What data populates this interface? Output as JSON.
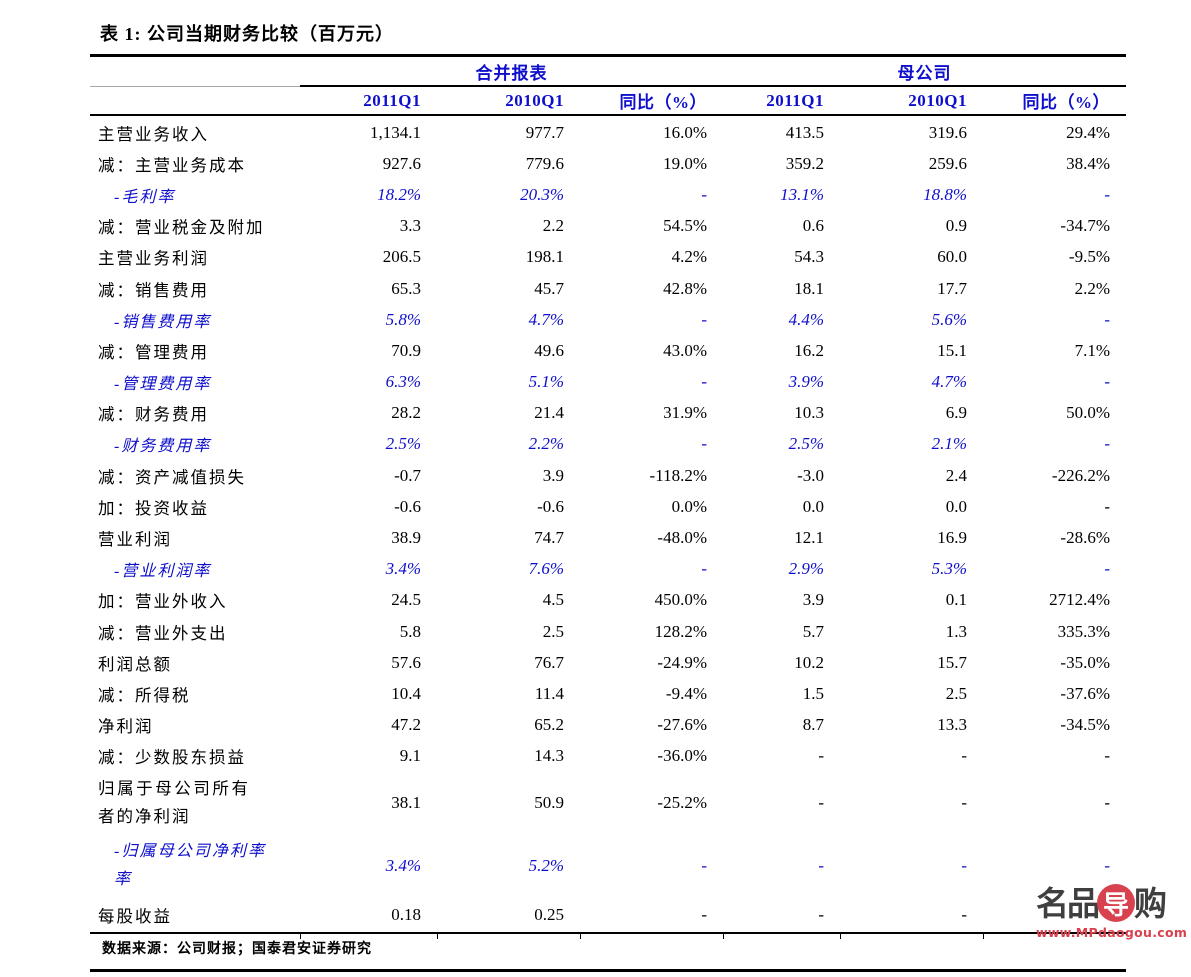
{
  "title": "表 1: 公司当期财务比较（百万元）",
  "header": {
    "group1": "合并报表",
    "group2": "母公司",
    "columns": [
      "2011Q1",
      "2010Q1",
      "同比（%）",
      "2011Q1",
      "2010Q1",
      "同比（%）"
    ]
  },
  "rows": [
    {
      "label": "主营业务收入",
      "style": "normal",
      "values": [
        "1,134.1",
        "977.7",
        "16.0%",
        "413.5",
        "319.6",
        "29.4%"
      ]
    },
    {
      "label": "减：主营业务成本",
      "style": "normal",
      "values": [
        "927.6",
        "779.6",
        "19.0%",
        "359.2",
        "259.6",
        "38.4%"
      ]
    },
    {
      "label": "-毛利率",
      "style": "ratio",
      "values": [
        "18.2%",
        "20.3%",
        "-",
        "13.1%",
        "18.8%",
        "-"
      ]
    },
    {
      "label": "减：营业税金及附加",
      "style": "normal",
      "values": [
        "3.3",
        "2.2",
        "54.5%",
        "0.6",
        "0.9",
        "-34.7%"
      ]
    },
    {
      "label": "主营业务利润",
      "style": "normal",
      "values": [
        "206.5",
        "198.1",
        "4.2%",
        "54.3",
        "60.0",
        "-9.5%"
      ]
    },
    {
      "label": "减：销售费用",
      "style": "normal",
      "values": [
        "65.3",
        "45.7",
        "42.8%",
        "18.1",
        "17.7",
        "2.2%"
      ]
    },
    {
      "label": "-销售费用率",
      "style": "ratio",
      "values": [
        "5.8%",
        "4.7%",
        "-",
        "4.4%",
        "5.6%",
        "-"
      ]
    },
    {
      "label": "减：管理费用",
      "style": "normal",
      "values": [
        "70.9",
        "49.6",
        "43.0%",
        "16.2",
        "15.1",
        "7.1%"
      ]
    },
    {
      "label": "-管理费用率",
      "style": "ratio",
      "values": [
        "6.3%",
        "5.1%",
        "-",
        "3.9%",
        "4.7%",
        "-"
      ]
    },
    {
      "label": "减：财务费用",
      "style": "normal",
      "values": [
        "28.2",
        "21.4",
        "31.9%",
        "10.3",
        "6.9",
        "50.0%"
      ]
    },
    {
      "label": "-财务费用率",
      "style": "ratio",
      "values": [
        "2.5%",
        "2.2%",
        "-",
        "2.5%",
        "2.1%",
        "-"
      ]
    },
    {
      "label": "减：资产减值损失",
      "style": "normal",
      "values": [
        "-0.7",
        "3.9",
        "-118.2%",
        "-3.0",
        "2.4",
        "-226.2%"
      ]
    },
    {
      "label": "加：投资收益",
      "style": "normal",
      "values": [
        "-0.6",
        "-0.6",
        "0.0%",
        "0.0",
        "0.0",
        "-"
      ]
    },
    {
      "label": "营业利润",
      "style": "normal",
      "values": [
        "38.9",
        "74.7",
        "-48.0%",
        "12.1",
        "16.9",
        "-28.6%"
      ]
    },
    {
      "label": "-营业利润率",
      "style": "ratio",
      "values": [
        "3.4%",
        "7.6%",
        "-",
        "2.9%",
        "5.3%",
        "-"
      ]
    },
    {
      "label": "加：营业外收入",
      "style": "normal",
      "values": [
        "24.5",
        "4.5",
        "450.0%",
        "3.9",
        "0.1",
        "2712.4%"
      ]
    },
    {
      "label": "减：营业外支出",
      "style": "normal",
      "values": [
        "5.8",
        "2.5",
        "128.2%",
        "5.7",
        "1.3",
        "335.3%"
      ]
    },
    {
      "label": "利润总额",
      "style": "normal",
      "values": [
        "57.6",
        "76.7",
        "-24.9%",
        "10.2",
        "15.7",
        "-35.0%"
      ]
    },
    {
      "label": "减：所得税",
      "style": "normal",
      "values": [
        "10.4",
        "11.4",
        "-9.4%",
        "1.5",
        "2.5",
        "-37.6%"
      ]
    },
    {
      "label": "净利润",
      "style": "normal",
      "values": [
        "47.2",
        "65.2",
        "-27.6%",
        "8.7",
        "13.3",
        "-34.5%"
      ]
    },
    {
      "label": "减：少数股东损益",
      "style": "normal",
      "values": [
        "9.1",
        "14.3",
        "-36.0%",
        "-",
        "-",
        "-"
      ]
    },
    {
      "label": "归属于母公司所有者的净利润",
      "style": "normal",
      "values": [
        "38.1",
        "50.9",
        "-25.2%",
        "-",
        "-",
        "-"
      ]
    },
    {
      "label": "-归属母公司净利率率",
      "style": "ratio",
      "values": [
        "3.4%",
        "5.2%",
        "-",
        "-",
        "-",
        "-"
      ]
    },
    {
      "label": "每股收益",
      "style": "normal",
      "values": [
        "0.18",
        "0.25",
        "-",
        "-",
        "-",
        "-"
      ]
    }
  ],
  "footer": {
    "source": "数据来源：公司财报；国泰君安证券研究"
  },
  "watermark": {
    "brand_left": "名品",
    "brand_badge": "导",
    "brand_right": "购",
    "url": "www.MPdaogou.com"
  },
  "colors": {
    "accent_blue": "#0e0ecc",
    "text_black": "#000000",
    "rule_gray": "#a8a8a8",
    "watermark_gray": "#3f3f3f",
    "watermark_red": "#d8414e"
  }
}
